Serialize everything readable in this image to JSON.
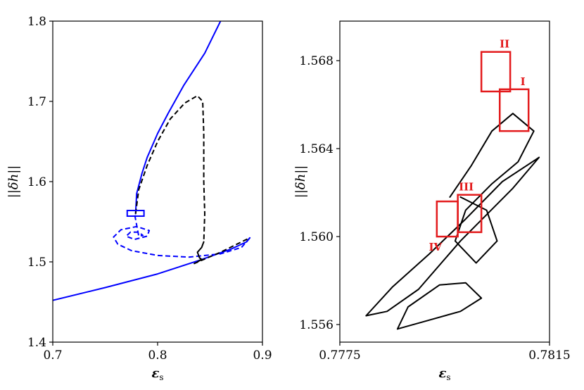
{
  "chart_data": [
    {
      "type": "line",
      "title": "",
      "xlabel": "ε",
      "xlabel_sub": "s",
      "ylabel": "||δh||",
      "xlim": [
        0.7,
        0.9
      ],
      "ylim": [
        1.4,
        1.8
      ],
      "x_ticks": [
        0.7,
        0.8,
        0.9
      ],
      "x_tick_labels": [
        "0.7",
        "0.8",
        "0.9"
      ],
      "y_ticks": [
        1.4,
        1.5,
        1.6,
        1.7,
        1.8
      ],
      "y_tick_labels": [
        "1.4",
        "1.5",
        "1.6",
        "1.7",
        "1.8"
      ],
      "grid": false,
      "series": [
        {
          "style": "solid",
          "color": "#0000ff",
          "x": [
            0.7,
            0.75,
            0.8,
            0.84,
            0.87,
            0.885,
            0.888
          ],
          "y": [
            1.452,
            1.468,
            1.485,
            1.502,
            1.516,
            1.525,
            1.53
          ]
        },
        {
          "style": "dashed",
          "color": "#0000ff",
          "x": [
            0.888,
            0.88,
            0.86,
            0.83,
            0.8,
            0.775,
            0.762,
            0.758,
            0.765,
            0.78,
            0.792,
            0.79,
            0.778,
            0.77,
            0.774,
            0.782,
            0.786,
            0.782,
            0.778
          ],
          "y": [
            1.53,
            1.518,
            1.51,
            1.506,
            1.508,
            1.514,
            1.522,
            1.531,
            1.54,
            1.544,
            1.539,
            1.532,
            1.528,
            1.532,
            1.537,
            1.537,
            1.533,
            1.532,
            1.56
          ]
        },
        {
          "style": "solid",
          "color": "#0000ff",
          "x": [
            0.779,
            0.78,
            0.785,
            0.79,
            0.8,
            0.81,
            0.825,
            0.845,
            0.86
          ],
          "y": [
            1.56,
            1.585,
            1.61,
            1.63,
            1.66,
            1.685,
            1.72,
            1.76,
            1.8
          ]
        },
        {
          "style": "dashed",
          "color": "#000000",
          "x": [
            0.779,
            0.782,
            0.79,
            0.8,
            0.812,
            0.826,
            0.838,
            0.843,
            0.844,
            0.844,
            0.845,
            0.844
          ],
          "y": [
            1.56,
            1.59,
            1.62,
            1.65,
            1.678,
            1.698,
            1.707,
            1.7,
            1.66,
            1.6,
            1.56,
            1.525
          ]
        },
        {
          "style": "solid",
          "color": "#000000",
          "x": [
            0.844,
            0.842,
            0.838,
            0.84,
            0.842
          ],
          "y": [
            1.525,
            1.518,
            1.512,
            1.505,
            1.503
          ]
        },
        {
          "style": "dashed",
          "color": "#000000",
          "x": [
            0.842,
            0.835,
            0.86,
            0.888
          ],
          "y": [
            1.503,
            1.498,
            1.512,
            1.53
          ]
        }
      ],
      "zoom_box": {
        "xlim": [
          0.771,
          0.787
        ],
        "ylim": [
          1.557,
          1.564
        ],
        "color": "#0000ff"
      }
    },
    {
      "type": "line",
      "title": "",
      "xlabel": "ε",
      "xlabel_sub": "s",
      "ylabel": "||δh||",
      "xlim": [
        0.7775,
        0.7815
      ],
      "ylim": [
        1.5552,
        1.5698
      ],
      "x_ticks": [
        0.7775,
        0.7815
      ],
      "x_tick_labels": [
        "0.7775",
        "0.7815"
      ],
      "y_ticks": [
        1.556,
        1.56,
        1.564,
        1.568
      ],
      "y_tick_labels": [
        "1.556",
        "1.560",
        "1.564",
        "1.568"
      ],
      "grid": false,
      "series": [
        {
          "style": "solid",
          "color": "#000000",
          "x": [
            0.778,
            0.7785,
            0.7792,
            0.7799,
            0.7806,
            0.7813,
            0.7808,
            0.7798,
            0.779,
            0.7784,
            0.778
          ],
          "y": [
            1.5564,
            1.5577,
            1.5592,
            1.5608,
            1.5625,
            1.5636,
            1.5622,
            1.5598,
            1.5576,
            1.5566,
            1.5564
          ]
        },
        {
          "style": "solid",
          "color": "#000000",
          "x": [
            0.7786,
            0.7792,
            0.7798,
            0.7802,
            0.7799,
            0.7794,
            0.7788,
            0.7786
          ],
          "y": [
            1.5558,
            1.5562,
            1.5566,
            1.5572,
            1.5579,
            1.5578,
            1.5568,
            1.5558
          ]
        },
        {
          "style": "solid",
          "color": "#000000",
          "x": [
            0.7796,
            0.78,
            0.7804,
            0.7808,
            0.7812,
            0.7809,
            0.7804,
            0.7799,
            0.7797,
            0.7801,
            0.7805,
            0.7803,
            0.7798
          ],
          "y": [
            1.5618,
            1.5632,
            1.5648,
            1.5656,
            1.5648,
            1.5634,
            1.5624,
            1.5612,
            1.5598,
            1.5588,
            1.5598,
            1.5612,
            1.5618
          ]
        }
      ],
      "boxes": [
        {
          "label": "I",
          "xlim": [
            0.78055,
            0.7811
          ],
          "ylim": [
            1.5648,
            1.5667
          ],
          "label_pos": "top-right"
        },
        {
          "label": "II",
          "xlim": [
            0.7802,
            0.78075
          ],
          "ylim": [
            1.5666,
            1.5684
          ],
          "label_pos": "top-right"
        },
        {
          "label": "III",
          "xlim": [
            0.77975,
            0.7802
          ],
          "ylim": [
            1.5602,
            1.5619
          ],
          "label_pos": "top-left"
        },
        {
          "label": "IV",
          "xlim": [
            0.77935,
            0.77975
          ],
          "ylim": [
            1.56,
            1.5616
          ],
          "label_pos": "bottom-left"
        }
      ],
      "box_color": "#e31a1c"
    }
  ]
}
